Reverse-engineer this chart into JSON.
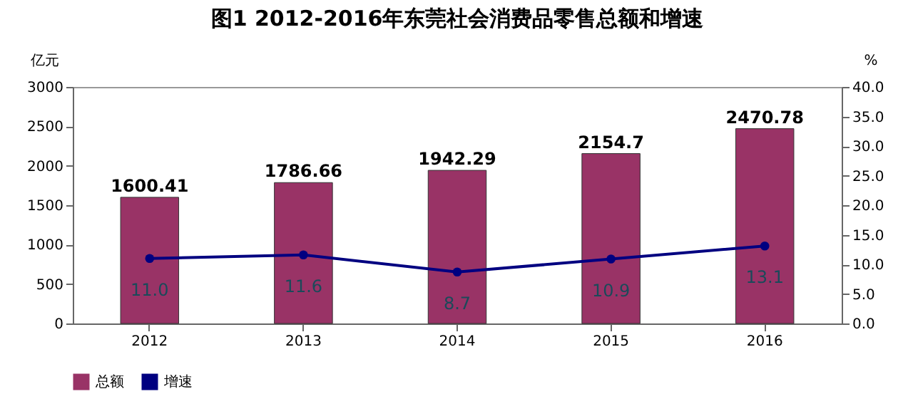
{
  "chart_data": {
    "type": "bar",
    "title": "图1 2012-2016年东莞社会消费品零售总额和增速",
    "ylabel": "亿元",
    "y2label": "%",
    "categories": [
      "2012",
      "2013",
      "2014",
      "2015",
      "2016"
    ],
    "series": [
      {
        "name": "总额",
        "color": "#993366",
        "values": [
          1600.41,
          1786.66,
          1942.29,
          2154.7,
          2470.78
        ],
        "value_labels": [
          "1600.41",
          "1786.66",
          "1942.29",
          "2154.7",
          "2470.78"
        ]
      },
      {
        "name": "增速",
        "type": "line",
        "axis": "y2",
        "color": "#000080",
        "values": [
          11.0,
          11.6,
          8.7,
          10.9,
          13.1
        ],
        "value_labels": [
          "11.0",
          "11.6",
          "8.7",
          "10.9",
          "13.1"
        ]
      }
    ],
    "ylim": [
      0,
      3000
    ],
    "yticks": [
      0,
      500,
      1000,
      1500,
      2000,
      2500,
      3000
    ],
    "y2lim": [
      0,
      40
    ],
    "y2ticks": [
      {
        "value": 0,
        "label": "0.0"
      },
      {
        "value": 5,
        "label": "5.0"
      },
      {
        "value": 10,
        "label": "10.0"
      },
      {
        "value": 15,
        "label": "15.0"
      },
      {
        "value": 20,
        "label": "20.0"
      },
      {
        "value": 25,
        "label": "25.0"
      },
      {
        "value": 30,
        "label": "30.0"
      },
      {
        "value": 35,
        "label": "35.0"
      },
      {
        "value": 40,
        "label": "40.0"
      }
    ],
    "grid": false,
    "legend": "bottom",
    "marker": "circle",
    "line_style": "solid"
  }
}
